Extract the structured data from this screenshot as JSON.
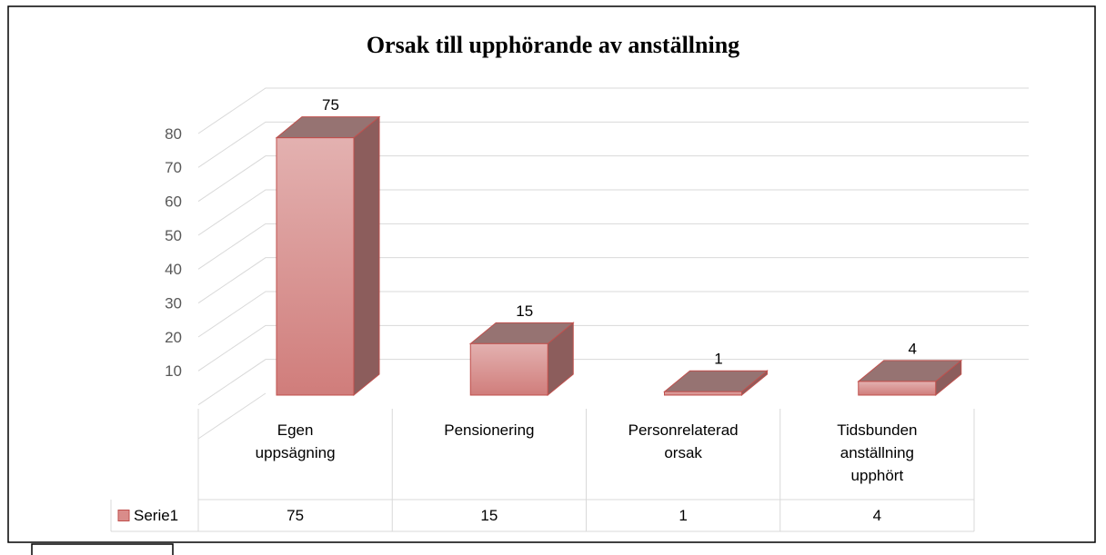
{
  "chart_data": {
    "type": "bar",
    "title": "Orsak till upphörande av anställning",
    "categories": [
      "Egen uppsägning",
      "Pensionering",
      "Personrelaterad orsak",
      "Tidsbunden anställning upphört"
    ],
    "series": [
      {
        "name": "Serie1",
        "color": "#d98c8a",
        "values": [
          75,
          15,
          1,
          4
        ]
      }
    ],
    "ylim": [
      0,
      90
    ],
    "yticks": [
      10,
      20,
      30,
      40,
      50,
      60,
      70,
      80
    ],
    "grid": true,
    "legend": "bottom-left"
  }
}
